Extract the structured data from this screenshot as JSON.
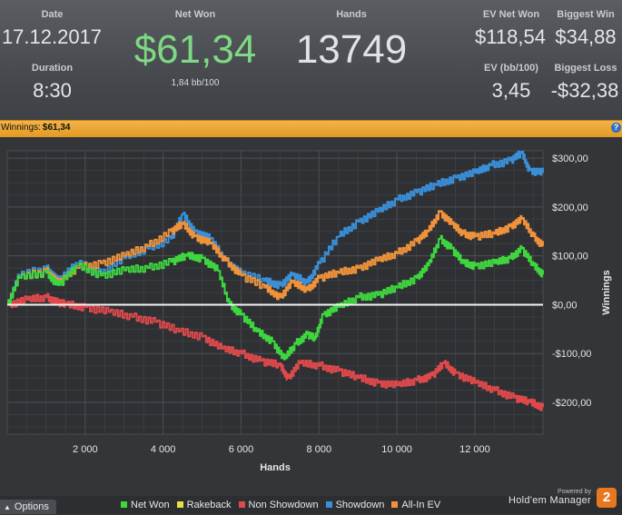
{
  "stats": {
    "date": {
      "label": "Date",
      "value": "17.12.2017"
    },
    "duration": {
      "label": "Duration",
      "value": "8:30"
    },
    "net_won": {
      "label": "Net Won",
      "value": "$61,34",
      "sub": "1,84 bb/100"
    },
    "hands": {
      "label": "Hands",
      "value": "13749"
    },
    "ev_net_won": {
      "label": "EV Net Won",
      "value": "$118,54"
    },
    "ev_bb": {
      "label": "EV (bb/100)",
      "value": "3,45"
    },
    "biggest_win": {
      "label": "Biggest Win",
      "value": "$34,88"
    },
    "biggest_loss": {
      "label": "Biggest Loss",
      "value": "-$32,38"
    }
  },
  "titlebar": {
    "label": "Winnings:",
    "value": "$61,34",
    "help": "?"
  },
  "footer": {
    "options_label": "Options",
    "powered_by": "Powered by",
    "brand": "Hold'em Manager",
    "brand_mark": "2",
    "legend": [
      {
        "name": "Net Won",
        "color": "#3ed63e"
      },
      {
        "name": "Rakeback",
        "color": "#e8e03c"
      },
      {
        "name": "Non Showdown",
        "color": "#e0494c"
      },
      {
        "name": "Showdown",
        "color": "#3a8fd8"
      },
      {
        "name": "All-In EV",
        "color": "#f0923a"
      }
    ]
  },
  "chart_data": {
    "type": "line",
    "xlabel": "Hands",
    "ylabel": "Winnings",
    "xlim": [
      0,
      13749
    ],
    "ylim": [
      -265,
      315
    ],
    "x_ticks": [
      2000,
      4000,
      6000,
      8000,
      10000,
      12000
    ],
    "x_tick_labels": [
      "2 000",
      "4 000",
      "6 000",
      "8 000",
      "10 000",
      "12 000"
    ],
    "y_ticks": [
      300,
      200,
      100,
      0,
      -100,
      -200
    ],
    "y_tick_labels": [
      "$300,00",
      "$200,00",
      "$100,00",
      "$0,00",
      "-$100,00",
      "-$200,00"
    ],
    "grid": true,
    "legend_position": "bottom",
    "series": [
      {
        "name": "Net Won",
        "color": "#3ed63e",
        "points": [
          [
            0,
            0
          ],
          [
            300,
            55
          ],
          [
            1000,
            65
          ],
          [
            1300,
            40
          ],
          [
            1800,
            80
          ],
          [
            2400,
            60
          ],
          [
            3000,
            70
          ],
          [
            3600,
            75
          ],
          [
            4200,
            88
          ],
          [
            4600,
            100
          ],
          [
            5000,
            95
          ],
          [
            5400,
            70
          ],
          [
            5700,
            0
          ],
          [
            6000,
            -20
          ],
          [
            6400,
            -55
          ],
          [
            6800,
            -75
          ],
          [
            7100,
            -112
          ],
          [
            7400,
            -80
          ],
          [
            7700,
            -60
          ],
          [
            7900,
            -70
          ],
          [
            8100,
            -20
          ],
          [
            8500,
            -5
          ],
          [
            9000,
            15
          ],
          [
            9500,
            20
          ],
          [
            10000,
            35
          ],
          [
            10500,
            55
          ],
          [
            10800,
            80
          ],
          [
            11100,
            135
          ],
          [
            11400,
            115
          ],
          [
            11700,
            85
          ],
          [
            12000,
            80
          ],
          [
            12500,
            85
          ],
          [
            12900,
            95
          ],
          [
            13200,
            115
          ],
          [
            13500,
            80
          ],
          [
            13749,
            62
          ]
        ]
      },
      {
        "name": "Rakeback",
        "color": "#e8e03c",
        "points": [
          [
            0,
            0
          ],
          [
            13749,
            0
          ]
        ]
      },
      {
        "name": "Non Showdown",
        "color": "#e0494c",
        "points": [
          [
            0,
            0
          ],
          [
            500,
            10
          ],
          [
            1000,
            15
          ],
          [
            1300,
            5
          ],
          [
            1500,
            0
          ],
          [
            2000,
            -5
          ],
          [
            2600,
            -15
          ],
          [
            3200,
            -25
          ],
          [
            3800,
            -35
          ],
          [
            4400,
            -55
          ],
          [
            5000,
            -65
          ],
          [
            5500,
            -90
          ],
          [
            6000,
            -100
          ],
          [
            6500,
            -115
          ],
          [
            7000,
            -125
          ],
          [
            7200,
            -150
          ],
          [
            7500,
            -120
          ],
          [
            8000,
            -125
          ],
          [
            8500,
            -135
          ],
          [
            9000,
            -150
          ],
          [
            9500,
            -160
          ],
          [
            10000,
            -165
          ],
          [
            10500,
            -155
          ],
          [
            10900,
            -145
          ],
          [
            11200,
            -120
          ],
          [
            11500,
            -140
          ],
          [
            12000,
            -160
          ],
          [
            12500,
            -175
          ],
          [
            13000,
            -190
          ],
          [
            13400,
            -200
          ],
          [
            13749,
            -210
          ]
        ]
      },
      {
        "name": "Showdown",
        "color": "#3a8fd8",
        "points": [
          [
            0,
            0
          ],
          [
            300,
            60
          ],
          [
            1000,
            75
          ],
          [
            1300,
            50
          ],
          [
            1800,
            85
          ],
          [
            2400,
            65
          ],
          [
            3000,
            95
          ],
          [
            3600,
            115
          ],
          [
            4200,
            135
          ],
          [
            4500,
            185
          ],
          [
            4800,
            150
          ],
          [
            5200,
            135
          ],
          [
            5600,
            90
          ],
          [
            6000,
            65
          ],
          [
            6600,
            48
          ],
          [
            7000,
            40
          ],
          [
            7300,
            60
          ],
          [
            7700,
            45
          ],
          [
            8000,
            85
          ],
          [
            8500,
            140
          ],
          [
            9000,
            170
          ],
          [
            9500,
            190
          ],
          [
            10000,
            215
          ],
          [
            10500,
            230
          ],
          [
            11000,
            245
          ],
          [
            11500,
            260
          ],
          [
            12000,
            270
          ],
          [
            12400,
            285
          ],
          [
            12900,
            295
          ],
          [
            13200,
            310
          ],
          [
            13400,
            275
          ],
          [
            13749,
            270
          ]
        ]
      },
      {
        "name": "All-In EV",
        "color": "#f0923a",
        "points": [
          [
            0,
            0
          ],
          [
            300,
            55
          ],
          [
            1000,
            70
          ],
          [
            1300,
            45
          ],
          [
            1800,
            75
          ],
          [
            2400,
            85
          ],
          [
            3000,
            100
          ],
          [
            3600,
            120
          ],
          [
            4200,
            150
          ],
          [
            4500,
            165
          ],
          [
            4800,
            140
          ],
          [
            5200,
            125
          ],
          [
            5600,
            90
          ],
          [
            6000,
            60
          ],
          [
            6600,
            35
          ],
          [
            7000,
            15
          ],
          [
            7300,
            45
          ],
          [
            7700,
            30
          ],
          [
            8000,
            55
          ],
          [
            8500,
            65
          ],
          [
            9000,
            75
          ],
          [
            9500,
            90
          ],
          [
            10000,
            105
          ],
          [
            10500,
            130
          ],
          [
            10800,
            150
          ],
          [
            11100,
            190
          ],
          [
            11400,
            165
          ],
          [
            11700,
            145
          ],
          [
            12000,
            140
          ],
          [
            12500,
            145
          ],
          [
            12900,
            160
          ],
          [
            13200,
            175
          ],
          [
            13500,
            140
          ],
          [
            13749,
            120
          ]
        ]
      }
    ]
  }
}
